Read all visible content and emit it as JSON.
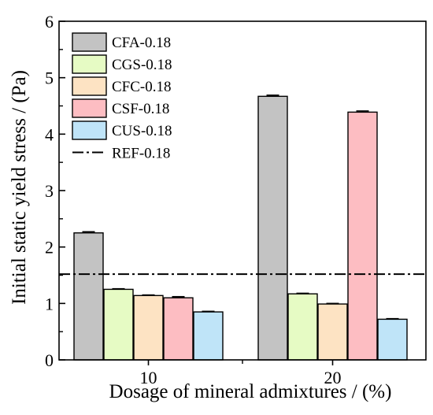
{
  "chart_data": {
    "type": "bar",
    "categories": [
      "10",
      "20"
    ],
    "xlabel": "Dosage of mineral admixtures / (%)",
    "ylabel": "Initial static yield stress / (Pa)",
    "ylim": [
      0,
      6
    ],
    "yticks": [
      "0",
      "1",
      "2",
      "3",
      "4",
      "5",
      "6"
    ],
    "grid": false,
    "legend_position": "top-left",
    "series": [
      {
        "name": "CFA-0.18",
        "color": "#c3c3c3",
        "values": [
          2.25,
          4.67
        ],
        "errors": [
          0.02,
          0.02
        ]
      },
      {
        "name": "CGS-0.18",
        "color": "#e6fbc4",
        "values": [
          1.25,
          1.17
        ],
        "errors": [
          0.01,
          0.01
        ]
      },
      {
        "name": "CFC-0.18",
        "color": "#fde3c3",
        "values": [
          1.14,
          0.99
        ],
        "errors": [
          0.01,
          0.01
        ]
      },
      {
        "name": "CSF-0.18",
        "color": "#fdbdc2",
        "values": [
          1.1,
          4.39
        ],
        "errors": [
          0.02,
          0.02
        ]
      },
      {
        "name": "CUS-0.18",
        "color": "#bfe4f8",
        "values": [
          0.85,
          0.72
        ],
        "errors": [
          0.01,
          0.01
        ]
      }
    ],
    "reference_line": {
      "name": "REF-0.18",
      "value": 1.52,
      "style": "dash-dot",
      "color": "#000000"
    }
  }
}
